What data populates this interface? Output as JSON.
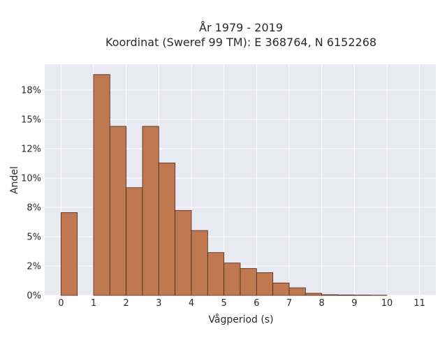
{
  "chart_data": {
    "type": "bar",
    "title_line1": "År 1979 - 2019",
    "title_line2": "Koordinat (Sweref 99 TM): E 368764, N 6152268",
    "xlabel": "Vågperiod (s)",
    "ylabel": "Andel",
    "x_ticks": [
      "0",
      "1",
      "2",
      "3",
      "4",
      "5",
      "6",
      "7",
      "8",
      "9",
      "10",
      "11"
    ],
    "y_ticks": [
      "0%",
      "2%",
      "5%",
      "8%",
      "10%",
      "12%",
      "15%",
      "18%"
    ],
    "y_tick_values": [
      0,
      2.5,
      5,
      7.5,
      10,
      12.5,
      15,
      17.5
    ],
    "xlim": [
      -0.5,
      11.5
    ],
    "ylim": [
      0,
      19.7
    ],
    "bin_width": 0.5,
    "bins": [
      {
        "x0": 0.0,
        "value": 7.06
      },
      {
        "x0": 1.0,
        "value": 18.82
      },
      {
        "x0": 1.5,
        "value": 14.41
      },
      {
        "x0": 2.0,
        "value": 9.18
      },
      {
        "x0": 2.5,
        "value": 14.41
      },
      {
        "x0": 3.0,
        "value": 11.29
      },
      {
        "x0": 3.5,
        "value": 7.24
      },
      {
        "x0": 4.0,
        "value": 5.53
      },
      {
        "x0": 4.5,
        "value": 3.65
      },
      {
        "x0": 5.0,
        "value": 2.76
      },
      {
        "x0": 5.5,
        "value": 2.29
      },
      {
        "x0": 6.0,
        "value": 1.94
      },
      {
        "x0": 6.5,
        "value": 1.06
      },
      {
        "x0": 7.0,
        "value": 0.65
      },
      {
        "x0": 7.5,
        "value": 0.18
      },
      {
        "x0": 8.0,
        "value": 0.06
      },
      {
        "x0": 8.5,
        "value": 0.04
      },
      {
        "x0": 9.0,
        "value": 0.03
      },
      {
        "x0": 9.5,
        "value": 0.02
      }
    ],
    "grid": true,
    "colors": {
      "bar_fill": "#c07850",
      "bar_stroke": "#4a2a18",
      "plot_bg": "#e9e9f1",
      "grid": "#ffffff"
    }
  }
}
